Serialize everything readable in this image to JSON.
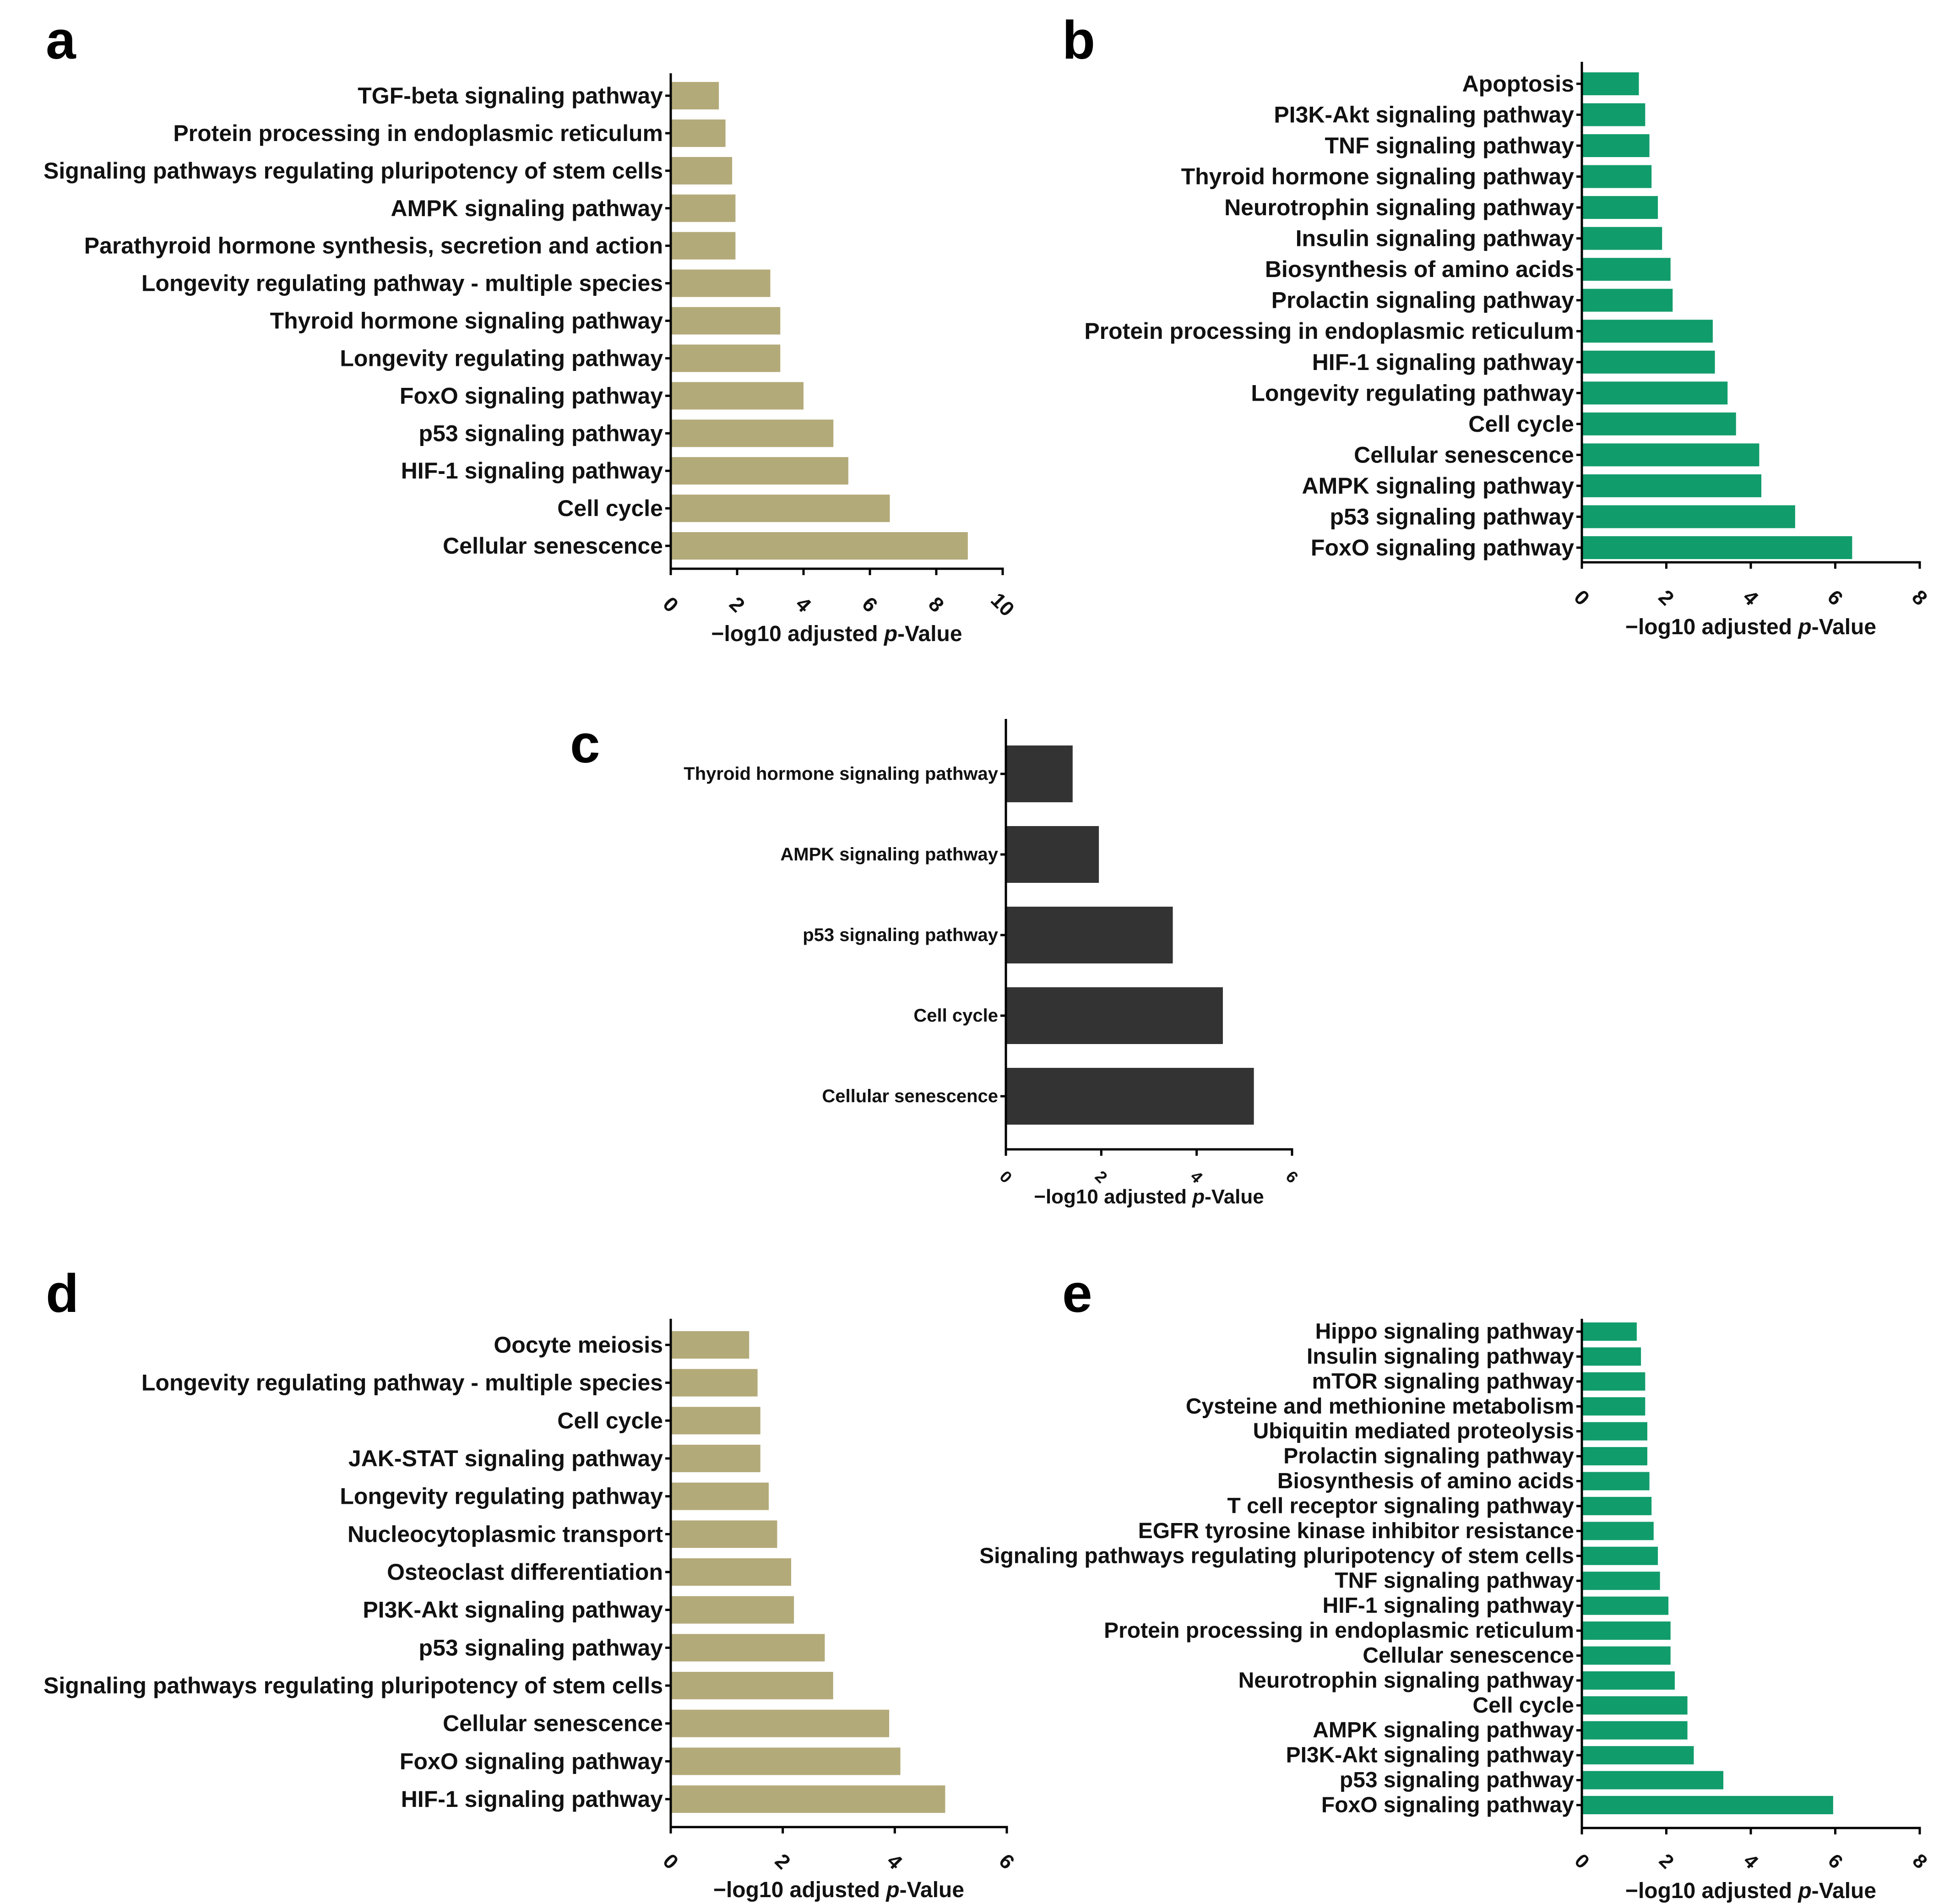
{
  "colors": {
    "tan": "#b3aa79",
    "green": "#119c6b",
    "dark": "#333333"
  },
  "chart_data": [
    {
      "id": "a",
      "panel_label": "a",
      "type": "bar",
      "orientation": "horizontal",
      "color": "#b3aa79",
      "categories": [
        "TGF-beta signaling pathway",
        "Protein processing in endoplasmic reticulum",
        "Signaling pathways regulating pluripotency of stem cells",
        "AMPK signaling pathway",
        "Parathyroid hormone synthesis, secretion and action",
        "Longevity regulating pathway - multiple species",
        "Thyroid hormone signaling pathway",
        "Longevity regulating pathway",
        "FoxO signaling pathway",
        "p53 signaling pathway",
        "HIF-1 signaling pathway",
        "Cell cycle",
        "Cellular senescence"
      ],
      "values": [
        1.45,
        1.65,
        1.85,
        1.95,
        1.95,
        3.0,
        3.3,
        3.3,
        4.0,
        4.9,
        5.35,
        6.6,
        8.95
      ],
      "xlim": [
        0,
        10
      ],
      "ticks": [
        "0",
        "2",
        "4",
        "6",
        "8",
        "10"
      ],
      "xlabel": "−log10 adjusted ",
      "xlabel_italic": "p",
      "xlabel_end": "-Value"
    },
    {
      "id": "b",
      "panel_label": "b",
      "type": "bar",
      "orientation": "horizontal",
      "color": "#119c6b",
      "categories": [
        "Apoptosis",
        "PI3K-Akt signaling pathway",
        "TNF signaling pathway",
        "Thyroid hormone signaling pathway",
        "Neurotrophin signaling pathway",
        "Insulin signaling pathway",
        "Biosynthesis of amino acids",
        "Prolactin signaling pathway",
        "Protein processing in endoplasmic reticulum",
        "HIF-1 signaling pathway",
        "Longevity regulating pathway",
        "Cell cycle",
        "Cellular senescence",
        "AMPK signaling pathway",
        "p53 signaling pathway",
        "FoxO signaling pathway"
      ],
      "values": [
        1.35,
        1.5,
        1.6,
        1.65,
        1.8,
        1.9,
        2.1,
        2.15,
        3.1,
        3.15,
        3.45,
        3.65,
        4.2,
        4.25,
        5.05,
        6.4
      ],
      "xlim": [
        0,
        8
      ],
      "ticks": [
        "0",
        "2",
        "4",
        "6",
        "8"
      ],
      "xlabel": "−log10 adjusted ",
      "xlabel_italic": "p",
      "xlabel_end": "-Value"
    },
    {
      "id": "c",
      "panel_label": "c",
      "type": "bar",
      "orientation": "horizontal",
      "color": "#333333",
      "categories": [
        "Thyroid hormone signaling pathway",
        "AMPK signaling pathway",
        "p53 signaling pathway",
        "Cell cycle",
        "Cellular senescence"
      ],
      "values": [
        1.4,
        1.95,
        3.5,
        4.55,
        5.2
      ],
      "xlim": [
        0,
        6
      ],
      "ticks": [
        "0",
        "2",
        "4",
        "6"
      ],
      "xlabel": "−log10 adjusted ",
      "xlabel_italic": "p",
      "xlabel_end": "-Value"
    },
    {
      "id": "d",
      "panel_label": "d",
      "type": "bar",
      "orientation": "horizontal",
      "color": "#b3aa79",
      "categories": [
        "Oocyte meiosis",
        "Longevity regulating pathway - multiple species",
        "Cell cycle",
        "JAK-STAT signaling pathway",
        "Longevity regulating pathway",
        "Nucleocytoplasmic transport",
        "Osteoclast differentiation",
        "PI3K-Akt signaling pathway",
        "p53 signaling pathway",
        "Signaling pathways regulating pluripotency of stem cells",
        "Cellular senescence",
        "FoxO signaling pathway",
        "HIF-1 signaling pathway"
      ],
      "values": [
        1.4,
        1.55,
        1.6,
        1.6,
        1.75,
        1.9,
        2.15,
        2.2,
        2.75,
        2.9,
        3.9,
        4.1,
        4.9
      ],
      "xlim": [
        0,
        6
      ],
      "ticks": [
        "0",
        "2",
        "4",
        "6"
      ],
      "xlabel": "−log10 adjusted ",
      "xlabel_italic": "p",
      "xlabel_end": "-Value"
    },
    {
      "id": "e",
      "panel_label": "e",
      "type": "bar",
      "orientation": "horizontal",
      "color": "#119c6b",
      "categories": [
        "Hippo signaling pathway",
        "Insulin signaling pathway",
        "mTOR signaling pathway",
        "Cysteine and methionine metabolism",
        "Ubiquitin mediated proteolysis",
        "Prolactin signaling pathway",
        "Biosynthesis of amino acids",
        "T cell receptor signaling pathway",
        "EGFR tyrosine kinase inhibitor resistance",
        "Signaling pathways regulating pluripotency of stem cells",
        "TNF signaling pathway",
        "HIF-1 signaling pathway",
        "Protein processing in endoplasmic reticulum",
        "Cellular senescence",
        "Neurotrophin signaling pathway",
        "Cell cycle",
        "AMPK signaling pathway",
        "PI3K-Akt signaling pathway",
        "p53 signaling pathway",
        "FoxO signaling pathway"
      ],
      "values": [
        1.3,
        1.4,
        1.5,
        1.5,
        1.55,
        1.55,
        1.6,
        1.65,
        1.7,
        1.8,
        1.85,
        2.05,
        2.1,
        2.1,
        2.2,
        2.5,
        2.5,
        2.65,
        3.35,
        5.95
      ],
      "xlim": [
        0,
        8
      ],
      "ticks": [
        "0",
        "2",
        "4",
        "6",
        "8"
      ],
      "xlabel": "−log10 adjusted ",
      "xlabel_italic": "p",
      "xlabel_end": "-Value"
    }
  ]
}
